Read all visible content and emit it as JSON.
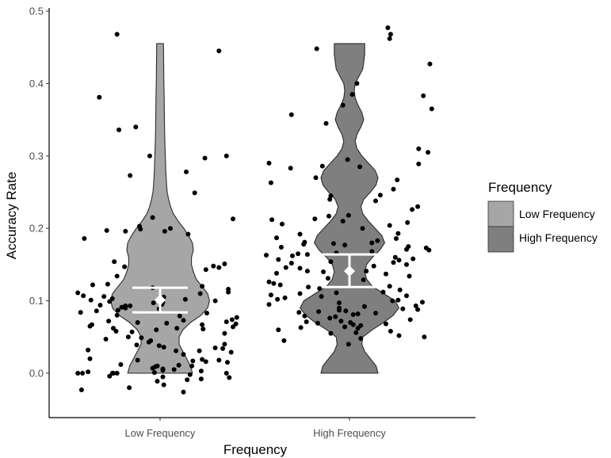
{
  "chart_data": {
    "type": "violin",
    "xlabel": "Frequency",
    "ylabel": "Accuracy Rate",
    "categories": [
      "Low Frequency",
      "High Frequency"
    ],
    "yticks": [
      0.0,
      0.1,
      0.2,
      0.3,
      0.4,
      0.5
    ],
    "ytick_labels": [
      "0.0",
      "0.1",
      "0.2",
      "0.3",
      "0.4",
      "0.5"
    ],
    "ylim": [
      -0.06,
      0.5
    ],
    "grid": false,
    "legend": {
      "title": "Frequency",
      "position": "right",
      "entries": [
        "Low Frequency",
        "High Frequency"
      ]
    },
    "colors": {
      "low": "#a6a6a6",
      "high": "#7f7f7f",
      "outline": "#2b2b2b",
      "point": "#000000",
      "summary": "#ffffff"
    },
    "violins": [
      {
        "name": "Low Frequency",
        "range": [
          0.0,
          0.455
        ],
        "profile": [
          [
            0.0,
            0.34
          ],
          [
            0.01,
            0.32
          ],
          [
            0.02,
            0.28
          ],
          [
            0.03,
            0.24
          ],
          [
            0.04,
            0.2
          ],
          [
            0.05,
            0.2
          ],
          [
            0.06,
            0.24
          ],
          [
            0.07,
            0.32
          ],
          [
            0.08,
            0.43
          ],
          [
            0.09,
            0.5
          ],
          [
            0.1,
            0.52
          ],
          [
            0.11,
            0.5
          ],
          [
            0.12,
            0.44
          ],
          [
            0.13,
            0.38
          ],
          [
            0.14,
            0.35
          ],
          [
            0.15,
            0.33
          ],
          [
            0.16,
            0.33
          ],
          [
            0.17,
            0.35
          ],
          [
            0.18,
            0.34
          ],
          [
            0.19,
            0.3
          ],
          [
            0.2,
            0.25
          ],
          [
            0.21,
            0.19
          ],
          [
            0.22,
            0.14
          ],
          [
            0.23,
            0.11
          ],
          [
            0.24,
            0.09
          ],
          [
            0.25,
            0.075
          ],
          [
            0.26,
            0.068
          ],
          [
            0.28,
            0.06
          ],
          [
            0.3,
            0.055
          ],
          [
            0.32,
            0.05
          ],
          [
            0.34,
            0.047
          ],
          [
            0.36,
            0.045
          ],
          [
            0.38,
            0.043
          ],
          [
            0.4,
            0.04
          ],
          [
            0.42,
            0.038
          ],
          [
            0.44,
            0.037
          ],
          [
            0.455,
            0.036
          ]
        ]
      },
      {
        "name": "High Frequency",
        "range": [
          0.0,
          0.455
        ],
        "profile": [
          [
            0.0,
            0.3
          ],
          [
            0.01,
            0.28
          ],
          [
            0.02,
            0.22
          ],
          [
            0.03,
            0.16
          ],
          [
            0.04,
            0.13
          ],
          [
            0.05,
            0.14
          ],
          [
            0.06,
            0.24
          ],
          [
            0.07,
            0.36
          ],
          [
            0.08,
            0.46
          ],
          [
            0.09,
            0.52
          ],
          [
            0.1,
            0.48
          ],
          [
            0.11,
            0.36
          ],
          [
            0.12,
            0.24
          ],
          [
            0.13,
            0.18
          ],
          [
            0.14,
            0.16
          ],
          [
            0.15,
            0.18
          ],
          [
            0.16,
            0.24
          ],
          [
            0.17,
            0.32
          ],
          [
            0.18,
            0.37
          ],
          [
            0.19,
            0.34
          ],
          [
            0.2,
            0.27
          ],
          [
            0.21,
            0.2
          ],
          [
            0.22,
            0.14
          ],
          [
            0.23,
            0.12
          ],
          [
            0.24,
            0.15
          ],
          [
            0.25,
            0.22
          ],
          [
            0.26,
            0.28
          ],
          [
            0.27,
            0.3
          ],
          [
            0.28,
            0.27
          ],
          [
            0.29,
            0.2
          ],
          [
            0.3,
            0.13
          ],
          [
            0.31,
            0.08
          ],
          [
            0.32,
            0.06
          ],
          [
            0.33,
            0.08
          ],
          [
            0.34,
            0.12
          ],
          [
            0.35,
            0.15
          ],
          [
            0.36,
            0.13
          ],
          [
            0.37,
            0.09
          ],
          [
            0.38,
            0.06
          ],
          [
            0.39,
            0.05
          ],
          [
            0.4,
            0.06
          ],
          [
            0.41,
            0.1
          ],
          [
            0.42,
            0.14
          ],
          [
            0.43,
            0.15
          ],
          [
            0.44,
            0.16
          ],
          [
            0.455,
            0.16
          ]
        ]
      }
    ],
    "summaries": [
      {
        "name": "Low Frequency",
        "mean": 0.101,
        "lower": 0.084,
        "upper": 0.118
      },
      {
        "name": "High Frequency",
        "mean": 0.141,
        "lower": 0.119,
        "upper": 0.164
      }
    ],
    "points": [
      {
        "group": "Low Frequency",
        "x": [
          -0.46,
          0.63,
          -0.65,
          -0.26,
          -0.44,
          0.71,
          -0.11,
          0.48,
          0.28,
          -0.32,
          0.37,
          -0.08,
          0.78,
          -0.22,
          0.11,
          -0.21,
          -0.57,
          -0.37,
          0.05,
          0.3,
          -0.81,
          -0.49,
          0.69,
          0.57,
          -0.38,
          0.63,
          0.49,
          -0.46,
          -0.56,
          -0.72,
          0.45,
          -0.08,
          0.73,
          0.73,
          -0.88,
          0.43,
          -0.82,
          -0.6,
          0.04,
          -0.51,
          0.27,
          -0.74,
          0.59,
          -0.54,
          0.03,
          -0.07,
          0.02,
          -0.64,
          -0.32,
          -0.37,
          -0.41,
          -0.37,
          -0.01,
          -0.45,
          -0.68,
          -0.85,
          0.5,
          -0.46,
          0.21,
          0.82,
          0.77,
          0.25,
          -0.55,
          0.71,
          -0.24,
          0.07,
          0.81,
          -0.73,
          0.45,
          -0.75,
          0.78,
          0.18,
          -0.5,
          0.46,
          -0.04,
          -0.47,
          -0.3,
          0.69,
          -0.34,
          -0.2,
          -0.58,
          -0.1,
          -0.12,
          0.69,
          -0.25,
          -0.01,
          0.04,
          0.59,
          0.67,
          -0.77,
          0.42,
          0.17,
          0.76,
          0.25,
          -0.75,
          0.45,
          0.63,
          -0.24,
          0.35,
          0.49,
          0.72,
          -0.42,
          0.2,
          -0.03,
          0.34,
          -0.05,
          -0.08,
          0.03,
          0.15,
          0.03,
          0.44,
          -0.77,
          -0.06,
          -0.83,
          -0.51,
          -0.88,
          -0.5,
          -0.46,
          0.71,
          0.32,
          -0.54,
          0.03,
          0.74,
          0.44,
          0.29,
          -0.03,
          0.04,
          -0.33,
          -0.84,
          0.25
        ],
        "y": [
          0.468,
          0.445,
          0.381,
          0.34,
          0.336,
          0.3,
          0.3,
          0.297,
          0.278,
          0.273,
          0.249,
          0.215,
          0.213,
          0.203,
          0.2,
          0.199,
          0.197,
          0.196,
          0.196,
          0.192,
          0.186,
          0.154,
          0.151,
          0.148,
          0.147,
          0.146,
          0.143,
          0.134,
          0.123,
          0.122,
          0.12,
          0.118,
          0.116,
          0.112,
          0.111,
          0.11,
          0.107,
          0.106,
          0.105,
          0.103,
          0.102,
          0.101,
          0.1,
          0.099,
          0.098,
          0.097,
          0.095,
          0.094,
          0.093,
          0.093,
          0.091,
          0.09,
          0.089,
          0.087,
          0.086,
          0.084,
          0.083,
          0.08,
          0.079,
          0.077,
          0.074,
          0.073,
          0.072,
          0.071,
          0.07,
          0.069,
          0.068,
          0.067,
          0.067,
          0.065,
          0.064,
          0.062,
          0.062,
          0.061,
          0.06,
          0.058,
          0.057,
          0.055,
          0.05,
          0.049,
          0.047,
          0.045,
          0.043,
          0.04,
          0.039,
          0.038,
          0.036,
          0.035,
          0.034,
          0.032,
          0.031,
          0.031,
          0.029,
          0.026,
          0.02,
          0.019,
          0.018,
          0.018,
          0.017,
          0.016,
          0.015,
          0.012,
          0.011,
          0.01,
          0.01,
          0.009,
          0.007,
          0.006,
          0.005,
          0.004,
          0.003,
          0.002,
          0.001,
          0.0,
          0.0,
          0.0,
          0.0,
          0.0,
          0.0,
          -0.002,
          -0.004,
          -0.005,
          -0.006,
          -0.008,
          -0.009,
          -0.011,
          -0.016,
          -0.02,
          -0.023,
          -0.026
        ]
      },
      {
        "group": "High Frequency",
        "x": [
          0.41,
          0.44,
          0.43,
          -0.35,
          0.86,
          0.08,
          0.03,
          0.79,
          -0.07,
          0.88,
          -0.62,
          -0.25,
          0.74,
          0.84,
          -0.02,
          -0.86,
          0.74,
          -0.29,
          0.11,
          -0.63,
          -0.36,
          0.51,
          -0.84,
          0.47,
          0.33,
          -0.2,
          -0.21,
          0.28,
          0.73,
          0.67,
          -0.01,
          -0.22,
          -0.37,
          -0.83,
          -0.07,
          0.62,
          -0.72,
          0.43,
          0.14,
          0.52,
          -0.53,
          -0.78,
          0.5,
          0.3,
          -0.48,
          0.24,
          -0.17,
          -0.49,
          -0.05,
          0.63,
          -0.73,
          0.82,
          0.61,
          0.85,
          0.24,
          -0.14,
          -0.55,
          -0.45,
          -0.89,
          -0.61,
          0.49,
          0.68,
          -0.76,
          0.53,
          -0.2,
          0.47,
          -0.62,
          0.61,
          0.26,
          -0.68,
          -0.53,
          0.18,
          -0.45,
          -0.28,
          -0.78,
          0.39,
          0.64,
          -0.23,
          0.15,
          -0.86,
          -0.81,
          -0.74,
          0.43,
          -0.44,
          -0.32,
          0.54,
          0.36,
          -0.14,
          -0.53,
          -0.84,
          0.61,
          -0.3,
          -0.69,
          -0.77,
          0.52,
          0.46,
          0.78,
          -0.11,
          -0.86,
          0.71,
          0.16,
          -0.11,
          0.57,
          0.73,
          -0.11,
          -0.04,
          -0.33,
          -0.54,
          0.28,
          0.09,
          0.04,
          -0.48,
          -0.15,
          -0.21,
          0.65,
          -0.09,
          -0.46,
          0.01,
          -0.34,
          0.39,
          0.04,
          0.12,
          -0.05,
          -0.52,
          0.09,
          -0.76,
          0.44,
          0.07,
          -0.2,
          0.53,
          0.8,
          0.12,
          -0.7,
          -0.01
        ],
        "y": [
          0.477,
          0.468,
          0.462,
          0.448,
          0.427,
          0.4,
          0.385,
          0.383,
          0.37,
          0.365,
          0.357,
          0.345,
          0.31,
          0.305,
          0.295,
          0.29,
          0.289,
          0.286,
          0.285,
          0.283,
          0.27,
          0.267,
          0.263,
          0.254,
          0.246,
          0.245,
          0.24,
          0.238,
          0.23,
          0.226,
          0.218,
          0.217,
          0.213,
          0.212,
          0.21,
          0.208,
          0.206,
          0.204,
          0.2,
          0.193,
          0.192,
          0.187,
          0.186,
          0.183,
          0.181,
          0.18,
          0.179,
          0.178,
          0.177,
          0.175,
          0.174,
          0.173,
          0.171,
          0.17,
          0.168,
          0.166,
          0.165,
          0.164,
          0.163,
          0.162,
          0.16,
          0.158,
          0.157,
          0.156,
          0.154,
          0.153,
          0.152,
          0.15,
          0.148,
          0.146,
          0.145,
          0.141,
          0.141,
          0.14,
          0.138,
          0.137,
          0.134,
          0.131,
          0.129,
          0.126,
          0.124,
          0.122,
          0.12,
          0.119,
          0.117,
          0.115,
          0.112,
          0.111,
          0.11,
          0.108,
          0.107,
          0.106,
          0.104,
          0.102,
          0.101,
          0.1,
          0.098,
          0.097,
          0.095,
          0.093,
          0.092,
          0.09,
          0.089,
          0.088,
          0.087,
          0.086,
          0.085,
          0.084,
          0.083,
          0.082,
          0.081,
          0.079,
          0.078,
          0.076,
          0.074,
          0.072,
          0.071,
          0.07,
          0.069,
          0.068,
          0.067,
          0.066,
          0.064,
          0.063,
          0.062,
          0.06,
          0.058,
          0.056,
          0.055,
          0.052,
          0.05,
          0.048,
          0.045,
          0.04
        ]
      }
    ]
  }
}
